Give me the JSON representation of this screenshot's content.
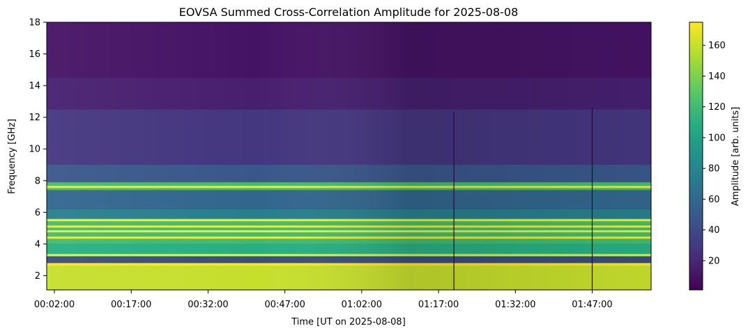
{
  "chart_data": {
    "type": "heatmap",
    "title": "EOVSA Summed Cross-Correlation Amplitude for 2025-08-08",
    "xlabel": "Time [UT on 2025-08-08]",
    "ylabel": "Frequency [GHz]",
    "colorbar_label": "Amplitude [arb. units]",
    "colormap": "viridis",
    "x_range": [
      "00:00:30",
      "01:58:30"
    ],
    "y_range": [
      1.1,
      18.0
    ],
    "x_ticks": [
      "00:02:00",
      "00:17:00",
      "00:32:00",
      "00:47:00",
      "01:02:00",
      "01:17:00",
      "01:32:00",
      "01:47:00"
    ],
    "y_ticks": [
      2,
      4,
      6,
      8,
      10,
      12,
      14,
      16,
      18
    ],
    "color_range": [
      1,
      175
    ],
    "colorbar_ticks": [
      20,
      40,
      60,
      80,
      100,
      120,
      140,
      160
    ],
    "bands": [
      {
        "freq_range": [
          14.5,
          18.0
        ],
        "amplitude": 10
      },
      {
        "freq_range": [
          12.5,
          14.5
        ],
        "amplitude": 16
      },
      {
        "freq_range": [
          9.0,
          12.5
        ],
        "amplitude": 28
      },
      {
        "freq_range": [
          7.9,
          9.0
        ],
        "amplitude": 48
      },
      {
        "freq_range": [
          7.4,
          7.9
        ],
        "amplitude": 120
      },
      {
        "freq_range": [
          6.2,
          7.4
        ],
        "amplitude": 58
      },
      {
        "freq_range": [
          5.6,
          6.2
        ],
        "amplitude": 75
      },
      {
        "freq_range": [
          4.0,
          5.6
        ],
        "amplitude": 120
      },
      {
        "freq_range": [
          3.2,
          4.0
        ],
        "amplitude": 110
      },
      {
        "freq_range": [
          2.8,
          3.2
        ],
        "amplitude": 40
      },
      {
        "freq_range": [
          1.1,
          2.8
        ],
        "amplitude": 160
      }
    ],
    "strong_lines_ghz": [
      7.6,
      5.5,
      5.1,
      4.8,
      4.4,
      3.3,
      2.7
    ],
    "dark_gaps": [
      {
        "time": "01:20:00",
        "freq_range": [
          1.1,
          12.3
        ]
      },
      {
        "time": "01:47:00",
        "freq_range": [
          1.1,
          12.6
        ]
      }
    ],
    "grid": false
  }
}
